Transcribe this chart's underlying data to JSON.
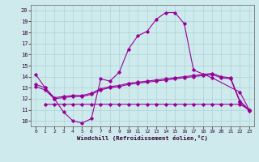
{
  "xlabel": "Windchill (Refroidissement éolien,°C)",
  "bg_color": "#ceeaec",
  "line_color": "#990099",
  "grid_color": "#aad4d8",
  "xlim": [
    -0.5,
    23.5
  ],
  "ylim": [
    9.5,
    20.5
  ],
  "yticks": [
    10,
    11,
    12,
    13,
    14,
    15,
    16,
    17,
    18,
    19,
    20
  ],
  "xticks": [
    0,
    1,
    2,
    3,
    4,
    5,
    6,
    7,
    8,
    9,
    10,
    11,
    12,
    13,
    14,
    15,
    16,
    17,
    18,
    19,
    20,
    21,
    22,
    23
  ],
  "line1_x": [
    0,
    1,
    2,
    3,
    4,
    5,
    6,
    7,
    8,
    9,
    10,
    11,
    12,
    13,
    14,
    15,
    16,
    17,
    19,
    22,
    23
  ],
  "line1_y": [
    14.2,
    13.0,
    12.0,
    10.8,
    10.0,
    9.8,
    10.2,
    13.8,
    13.6,
    14.4,
    16.5,
    17.7,
    18.1,
    19.2,
    19.8,
    19.8,
    18.8,
    14.6,
    13.9,
    12.6,
    11.0
  ],
  "line2_x": [
    0,
    1,
    2,
    3,
    4,
    5,
    6,
    7,
    8,
    9,
    10,
    11,
    12,
    13,
    14,
    15,
    16,
    17,
    18,
    19,
    20,
    21,
    22,
    23
  ],
  "line2_y": [
    13.3,
    13.0,
    12.1,
    12.2,
    12.3,
    12.3,
    12.5,
    12.9,
    13.1,
    13.2,
    13.4,
    13.5,
    13.6,
    13.7,
    13.8,
    13.9,
    14.0,
    14.1,
    14.2,
    14.3,
    14.0,
    13.9,
    11.8,
    11.0
  ],
  "line3_x": [
    0,
    1,
    2,
    3,
    4,
    5,
    6,
    7,
    8,
    9,
    10,
    11,
    12,
    13,
    14,
    15,
    16,
    17,
    18,
    19,
    20,
    21,
    22,
    23
  ],
  "line3_y": [
    13.1,
    12.8,
    12.0,
    12.1,
    12.2,
    12.2,
    12.4,
    12.8,
    13.0,
    13.1,
    13.3,
    13.4,
    13.5,
    13.6,
    13.7,
    13.8,
    13.9,
    14.0,
    14.1,
    14.2,
    13.9,
    13.8,
    11.7,
    10.9
  ],
  "line4_x": [
    1,
    2,
    3,
    4,
    5,
    6,
    7,
    8,
    9,
    10,
    11,
    12,
    13,
    14,
    15,
    16,
    17,
    18,
    19,
    20,
    21,
    22,
    23
  ],
  "line4_y": [
    11.5,
    11.5,
    11.5,
    11.5,
    11.5,
    11.5,
    11.5,
    11.5,
    11.5,
    11.5,
    11.5,
    11.5,
    11.5,
    11.5,
    11.5,
    11.5,
    11.5,
    11.5,
    11.5,
    11.5,
    11.5,
    11.5,
    11.0
  ]
}
